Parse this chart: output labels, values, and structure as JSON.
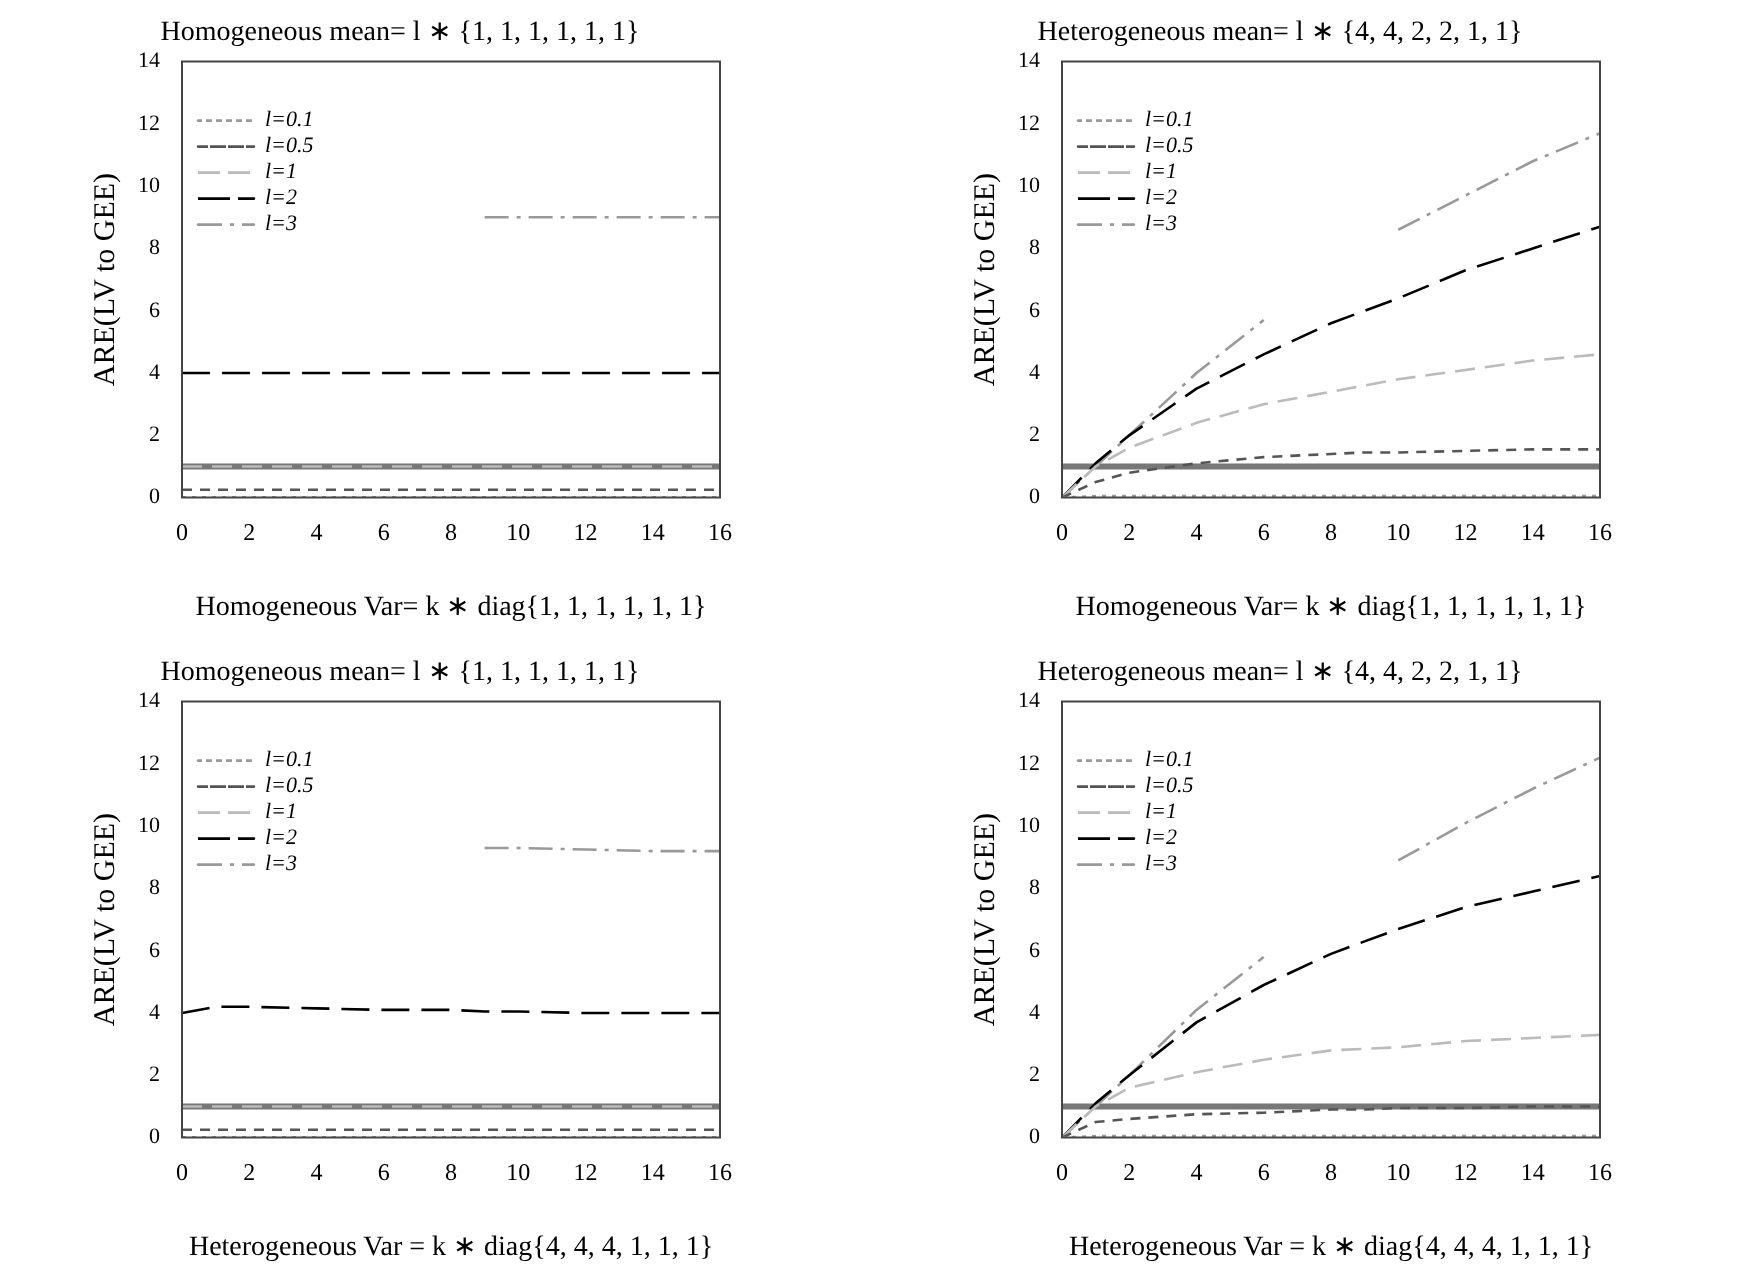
{
  "chart_data": [
    {
      "type": "line",
      "title": "Homogeneous mean= l ∗ {1, 1, 1, 1, 1, 1}",
      "xlabel": "Homogeneous Var= k ∗ diag{1, 1, 1, 1, 1, 1}",
      "ylabel": "ARE(LV to GEE)",
      "x": [
        0,
        1,
        2,
        4,
        6,
        8,
        9,
        10,
        12,
        14,
        16
      ],
      "xlim": [
        0,
        16
      ],
      "xticks": [
        0,
        2,
        4,
        6,
        8,
        10,
        12,
        14,
        16
      ],
      "ylim": [
        0,
        14
      ],
      "yticks": [
        0,
        2,
        4,
        6,
        8,
        10,
        12,
        14
      ],
      "legend": "top left",
      "grid": false,
      "marker": "none",
      "ref_lines": [
        {
          "axis": "y",
          "value": 1,
          "color": "#777777",
          "line_style": "solid"
        }
      ],
      "series": [
        {
          "name": "l=0.1",
          "color": "#999999",
          "line_style": "dotted",
          "values": [
            0.01,
            0.01,
            0.01,
            0.01,
            0.01,
            0.01,
            0.01,
            0.01,
            0.01,
            0.01,
            0.01
          ]
        },
        {
          "name": "l=0.5",
          "color": "#555555",
          "line_style": "dashed",
          "values": [
            0.25,
            0.25,
            0.25,
            0.25,
            0.25,
            0.25,
            0.25,
            0.25,
            0.25,
            0.25,
            0.25
          ]
        },
        {
          "name": "l=1",
          "color": "#bbbbbb",
          "line_style": "dashed",
          "values": [
            1,
            1,
            1,
            1,
            1,
            1,
            1,
            1,
            1,
            1,
            1
          ]
        },
        {
          "name": "l=2",
          "color": "#000000",
          "line_style": "dashed",
          "values": [
            4,
            4,
            4,
            4,
            4,
            4,
            4,
            4,
            4,
            4,
            4
          ]
        },
        {
          "name": "l=3",
          "color": "#999999",
          "line_style": "dashdot",
          "values": [
            null,
            null,
            null,
            null,
            null,
            null,
            9,
            9,
            9,
            9,
            9
          ]
        }
      ]
    },
    {
      "type": "line",
      "title": "Heterogeneous mean= l ∗ {4, 4, 2, 2, 1, 1}",
      "xlabel": "Homogeneous Var= k ∗ diag{1, 1, 1, 1, 1, 1}",
      "ylabel": "ARE(LV to GEE)",
      "x": [
        0,
        1,
        2,
        4,
        6,
        8,
        9,
        10,
        12,
        14,
        16
      ],
      "xlim": [
        0,
        16
      ],
      "xticks": [
        0,
        2,
        4,
        6,
        8,
        10,
        12,
        14,
        16
      ],
      "ylim": [
        0,
        14
      ],
      "yticks": [
        0,
        2,
        4,
        6,
        8,
        10,
        12,
        14
      ],
      "legend": "top left",
      "grid": false,
      "marker": "none",
      "ref_lines": [
        {
          "axis": "y",
          "value": 1,
          "color": "#777777",
          "line_style": "solid"
        }
      ],
      "series": [
        {
          "name": "l=0.1",
          "color": "#999999",
          "line_style": "dotted",
          "values": [
            0,
            0.05,
            0.05,
            0.05,
            0.05,
            0.05,
            0.05,
            0.05,
            0.05,
            0.05,
            0.05
          ]
        },
        {
          "name": "l=0.5",
          "color": "#555555",
          "line_style": "dashed",
          "values": [
            0,
            0.5,
            0.8,
            1.1,
            1.3,
            1.4,
            1.45,
            1.45,
            1.5,
            1.55,
            1.55
          ]
        },
        {
          "name": "l=1",
          "color": "#bbbbbb",
          "line_style": "dashed",
          "values": [
            0,
            1.0,
            1.6,
            2.4,
            3.0,
            3.4,
            3.6,
            3.8,
            4.1,
            4.4,
            4.6
          ]
        },
        {
          "name": "l=2",
          "color": "#000000",
          "line_style": "dashed",
          "values": [
            0,
            1.1,
            2.0,
            3.5,
            4.6,
            5.6,
            6.0,
            6.4,
            7.3,
            8.0,
            8.7
          ]
        },
        {
          "name": "l=3",
          "color": "#999999",
          "line_style": "dashdot",
          "values": [
            0,
            1.0,
            2.0,
            4.0,
            5.7,
            null,
            null,
            8.6,
            9.7,
            10.8,
            11.7
          ]
        }
      ]
    },
    {
      "type": "line",
      "title": "Homogeneous mean= l ∗ {1, 1, 1, 1, 1, 1}",
      "xlabel": "Heterogeneous Var = k ∗ diag{4, 4, 4, 1, 1, 1}",
      "ylabel": "ARE(LV to GEE)",
      "x": [
        0,
        1,
        2,
        4,
        6,
        8,
        9,
        10,
        12,
        14,
        16
      ],
      "xlim": [
        0,
        16
      ],
      "xticks": [
        0,
        2,
        4,
        6,
        8,
        10,
        12,
        14,
        16
      ],
      "ylim": [
        0,
        14
      ],
      "yticks": [
        0,
        2,
        4,
        6,
        8,
        10,
        12,
        14
      ],
      "legend": "top left",
      "grid": false,
      "marker": "none",
      "ref_lines": [
        {
          "axis": "y",
          "value": 1,
          "color": "#777777",
          "line_style": "solid"
        }
      ],
      "series": [
        {
          "name": "l=0.1",
          "color": "#999999",
          "line_style": "dotted",
          "values": [
            0.01,
            0.01,
            0.01,
            0.01,
            0.01,
            0.01,
            0.01,
            0.01,
            0.01,
            0.01,
            0.01
          ]
        },
        {
          "name": "l=0.5",
          "color": "#555555",
          "line_style": "dashed",
          "values": [
            0.25,
            0.25,
            0.25,
            0.25,
            0.25,
            0.25,
            0.25,
            0.25,
            0.25,
            0.25,
            0.25
          ]
        },
        {
          "name": "l=1",
          "color": "#bbbbbb",
          "line_style": "dashed",
          "values": [
            1,
            1,
            1,
            1,
            1,
            1,
            1,
            1,
            1,
            1,
            1
          ]
        },
        {
          "name": "l=2",
          "color": "#000000",
          "line_style": "dashed",
          "values": [
            4.0,
            4.2,
            4.2,
            4.15,
            4.1,
            4.1,
            4.05,
            4.05,
            4.0,
            4.0,
            4.0
          ]
        },
        {
          "name": "l=3",
          "color": "#999999",
          "line_style": "dashdot",
          "values": [
            null,
            null,
            null,
            null,
            null,
            null,
            9.3,
            9.3,
            9.25,
            9.2,
            9.2
          ]
        }
      ]
    },
    {
      "type": "line",
      "title": "Heterogeneous mean= l ∗ {4, 4, 2, 2, 1, 1}",
      "xlabel": "Heterogeneous Var = k ∗ diag{4, 4, 4, 1, 1, 1}",
      "ylabel": "ARE(LV to GEE)",
      "x": [
        0,
        1,
        2,
        4,
        6,
        8,
        9,
        10,
        12,
        14,
        16
      ],
      "xlim": [
        0,
        16
      ],
      "xticks": [
        0,
        2,
        4,
        6,
        8,
        10,
        12,
        14,
        16
      ],
      "ylim": [
        0,
        14
      ],
      "yticks": [
        0,
        2,
        4,
        6,
        8,
        10,
        12,
        14
      ],
      "legend": "top left",
      "grid": false,
      "marker": "none",
      "ref_lines": [
        {
          "axis": "y",
          "value": 1,
          "color": "#777777",
          "line_style": "solid"
        }
      ],
      "series": [
        {
          "name": "l=0.1",
          "color": "#999999",
          "line_style": "dotted",
          "values": [
            0,
            0.05,
            0.05,
            0.05,
            0.05,
            0.05,
            0.05,
            0.05,
            0.05,
            0.05,
            0.05
          ]
        },
        {
          "name": "l=0.5",
          "color": "#555555",
          "line_style": "dashed",
          "values": [
            0,
            0.5,
            0.6,
            0.75,
            0.8,
            0.9,
            0.9,
            0.95,
            0.95,
            1.0,
            1.0
          ]
        },
        {
          "name": "l=1",
          "color": "#bbbbbb",
          "line_style": "dashed",
          "values": [
            0,
            1.0,
            1.6,
            2.1,
            2.5,
            2.8,
            2.85,
            2.9,
            3.1,
            3.2,
            3.3
          ]
        },
        {
          "name": "l=2",
          "color": "#000000",
          "line_style": "dashed",
          "values": [
            0,
            1.1,
            2.0,
            3.7,
            4.9,
            5.9,
            6.3,
            6.7,
            7.4,
            7.9,
            8.4
          ]
        },
        {
          "name": "l=3",
          "color": "#999999",
          "line_style": "dashdot",
          "values": [
            0,
            1.0,
            2.0,
            4.1,
            5.8,
            null,
            null,
            8.9,
            10.1,
            11.2,
            12.2
          ]
        }
      ]
    }
  ]
}
